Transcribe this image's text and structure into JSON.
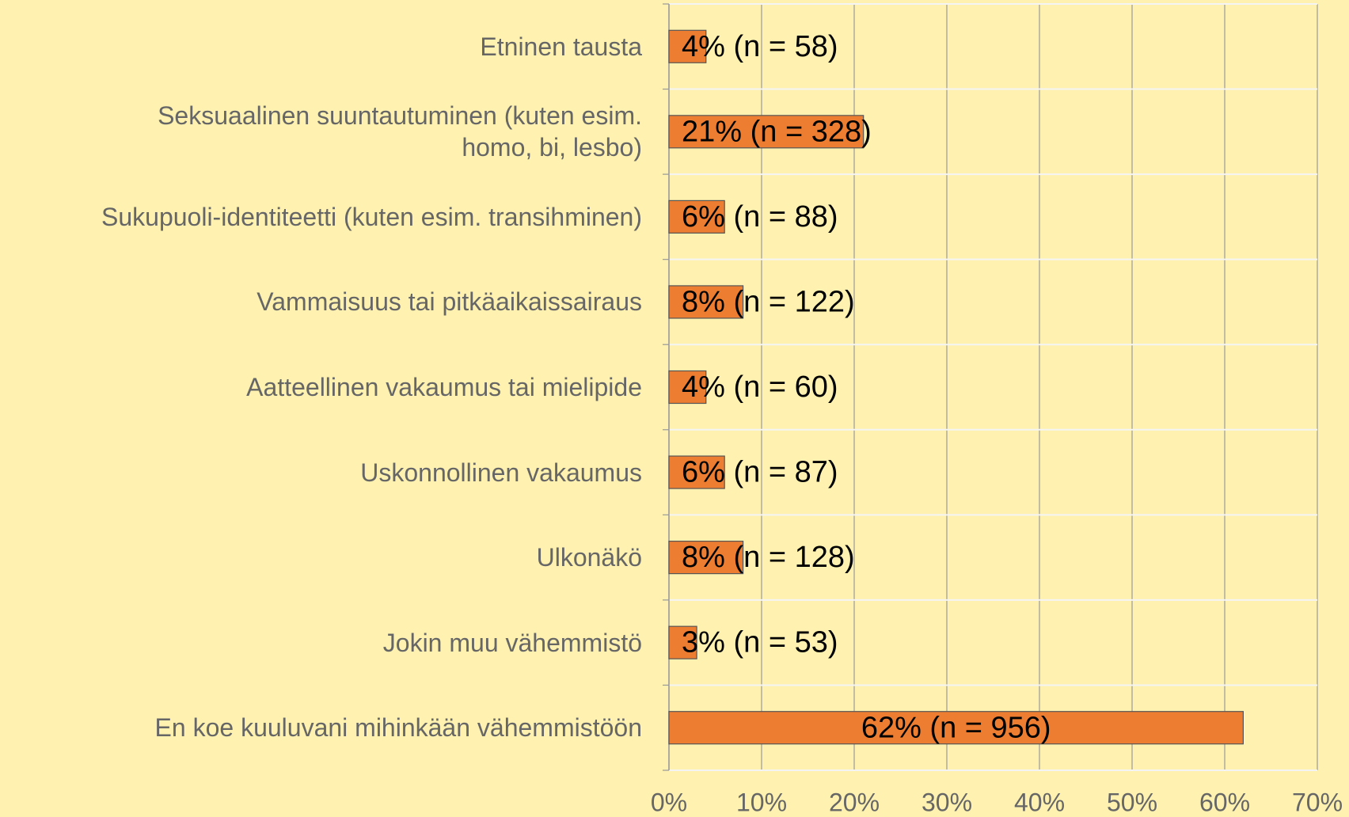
{
  "chart_data": {
    "type": "bar",
    "orientation": "horizontal",
    "categories": [
      "Etninen tausta",
      "Seksuaalinen suuntautuminen (kuten esim.\nhomo, bi, lesbo)",
      "Sukupuoli-identiteetti (kuten esim. transihminen)",
      "Vammaisuus tai pitkäaikaissairaus",
      "Aatteellinen vakaumus tai mielipide",
      "Uskonnollinen vakaumus",
      "Ulkonäkö",
      "Jokin muu vähemmistö",
      "En koe kuuluvani mihinkään vähemmistöön"
    ],
    "values": [
      4,
      21,
      6,
      8,
      4,
      6,
      8,
      3,
      62
    ],
    "value_labels": [
      "4% (n = 58)",
      "21% (n = 328)",
      "6% (n = 88)",
      "8% (n = 122)",
      "4% (n = 60)",
      "6% (n = 87)",
      "8% (n = 128)",
      "3% (n = 53)",
      "62% (n = 956)"
    ],
    "color": "#ed7d31",
    "xlim": [
      0,
      70
    ],
    "xticks": [
      {
        "value": 0,
        "label": "0%"
      },
      {
        "value": 10,
        "label": "10%"
      },
      {
        "value": 20,
        "label": "20%"
      },
      {
        "value": 30,
        "label": "30%"
      },
      {
        "value": 40,
        "label": "40%"
      },
      {
        "value": 50,
        "label": "50%"
      },
      {
        "value": 60,
        "label": "60%"
      },
      {
        "value": 70,
        "label": "70%"
      }
    ],
    "grid": true
  }
}
